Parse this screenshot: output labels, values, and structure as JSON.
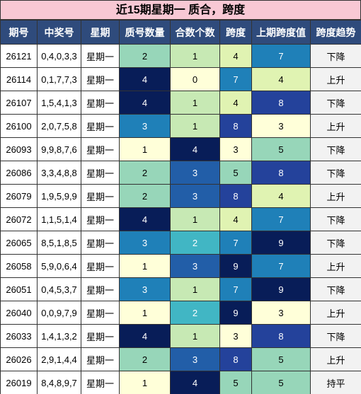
{
  "title": "近15期星期一 质合，跨度",
  "table": {
    "header": [
      "期号",
      "中奖号",
      "星期",
      "质号数量",
      "合数个数",
      "跨度",
      "上期跨度值",
      "跨度趋势"
    ],
    "rows": [
      [
        "26121",
        "0,4,0,3,3",
        "星期一",
        2,
        1,
        4,
        7,
        "下降"
      ],
      [
        "26114",
        "0,1,7,7,3",
        "星期一",
        4,
        0,
        7,
        4,
        "上升"
      ],
      [
        "26107",
        "1,5,4,1,3",
        "星期一",
        4,
        1,
        4,
        8,
        "下降"
      ],
      [
        "26100",
        "2,0,7,5,8",
        "星期一",
        3,
        1,
        8,
        3,
        "上升"
      ],
      [
        "26093",
        "9,9,8,7,6",
        "星期一",
        1,
        4,
        3,
        5,
        "下降"
      ],
      [
        "26086",
        "3,3,4,8,8",
        "星期一",
        2,
        3,
        5,
        8,
        "下降"
      ],
      [
        "26079",
        "1,9,5,9,9",
        "星期一",
        2,
        3,
        8,
        4,
        "上升"
      ],
      [
        "26072",
        "1,1,5,1,4",
        "星期一",
        4,
        1,
        4,
        7,
        "下降"
      ],
      [
        "26065",
        "8,5,1,8,5",
        "星期一",
        3,
        2,
        7,
        9,
        "下降"
      ],
      [
        "26058",
        "5,9,0,6,4",
        "星期一",
        1,
        3,
        9,
        7,
        "上升"
      ],
      [
        "26051",
        "0,4,5,3,7",
        "星期一",
        3,
        1,
        7,
        9,
        "下降"
      ],
      [
        "26040",
        "0,0,9,7,9",
        "星期一",
        1,
        2,
        9,
        3,
        "上升"
      ],
      [
        "26033",
        "1,4,1,3,2",
        "星期一",
        4,
        1,
        3,
        8,
        "下降"
      ],
      [
        "26026",
        "2,9,1,4,4",
        "星期一",
        2,
        3,
        8,
        5,
        "上升"
      ],
      [
        "26019",
        "8,4,8,9,7",
        "星期一",
        1,
        4,
        5,
        5,
        "持平"
      ]
    ]
  }
}
